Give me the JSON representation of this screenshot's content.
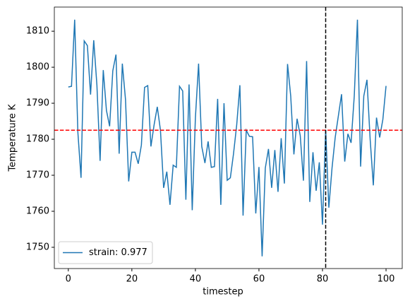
{
  "chart_data": {
    "type": "line",
    "xlabel": "timestep",
    "ylabel": "Temperature K",
    "x": [
      0,
      1,
      2,
      3,
      4,
      5,
      6,
      7,
      8,
      9,
      10,
      11,
      12,
      13,
      14,
      15,
      16,
      17,
      18,
      19,
      20,
      21,
      22,
      23,
      24,
      25,
      26,
      27,
      28,
      29,
      30,
      31,
      32,
      33,
      34,
      35,
      36,
      37,
      38,
      39,
      40,
      41,
      42,
      43,
      44,
      45,
      46,
      47,
      48,
      49,
      50,
      51,
      52,
      53,
      54,
      55,
      56,
      57,
      58,
      59,
      60,
      61,
      62,
      63,
      64,
      65,
      66,
      67,
      68,
      69,
      70,
      71,
      72,
      73,
      74,
      75,
      76,
      77,
      78,
      79,
      80,
      81,
      82,
      83,
      84,
      85,
      86,
      87,
      88,
      89,
      90,
      91,
      92,
      93,
      94,
      95,
      96,
      97,
      98,
      99,
      100
    ],
    "series": [
      {
        "name": "strain: 0.977",
        "color": "#1f77b4",
        "values": [
          1794.5,
          1794.7,
          1813.2,
          1782,
          1769.3,
          1807.3,
          1806,
          1792.4,
          1807.5,
          1795,
          1774,
          1799.2,
          1788,
          1783.6,
          1799,
          1803.5,
          1776,
          1801,
          1791,
          1768.3,
          1776.4,
          1776.4,
          1773.2,
          1778.4,
          1794.4,
          1794.9,
          1778,
          1784,
          1789,
          1782.5,
          1766.5,
          1771,
          1761.8,
          1772.8,
          1772.2,
          1794.7,
          1793.4,
          1763.2,
          1795.2,
          1760.3,
          1786,
          1801,
          1778,
          1773.4,
          1779.4,
          1772.2,
          1772.4,
          1791.2,
          1761.8,
          1790,
          1768.6,
          1769.3,
          1776,
          1784,
          1795,
          1758.8,
          1782.5,
          1780.8,
          1780.7,
          1759.4,
          1772.3,
          1747.5,
          1772,
          1777.3,
          1766.5,
          1777,
          1765.4,
          1780.3,
          1767.7,
          1800.9,
          1792,
          1775.8,
          1785.7,
          1781,
          1768.5,
          1801.7,
          1762.6,
          1776.4,
          1765.7,
          1773.6,
          1756.3,
          1782.6,
          1761,
          1772,
          1780.5,
          1786.5,
          1792.5,
          1773.8,
          1781.5,
          1779,
          1792,
          1813.2,
          1772.4,
          1792,
          1796.5,
          1780,
          1767.2,
          1786,
          1780.5,
          1785.5,
          1794.8
        ]
      }
    ],
    "hline": {
      "value": 1782.5,
      "color": "#ff0000"
    },
    "vline": {
      "value": 81,
      "color": "#000000"
    },
    "xlim": [
      -4.4,
      105.1
    ],
    "xticks": [
      0,
      20,
      40,
      60,
      80,
      100
    ],
    "ylim": [
      1744.1,
      1816.7
    ],
    "yticks": [
      1750,
      1760,
      1770,
      1780,
      1790,
      1800,
      1810
    ],
    "legend": "lower left"
  }
}
